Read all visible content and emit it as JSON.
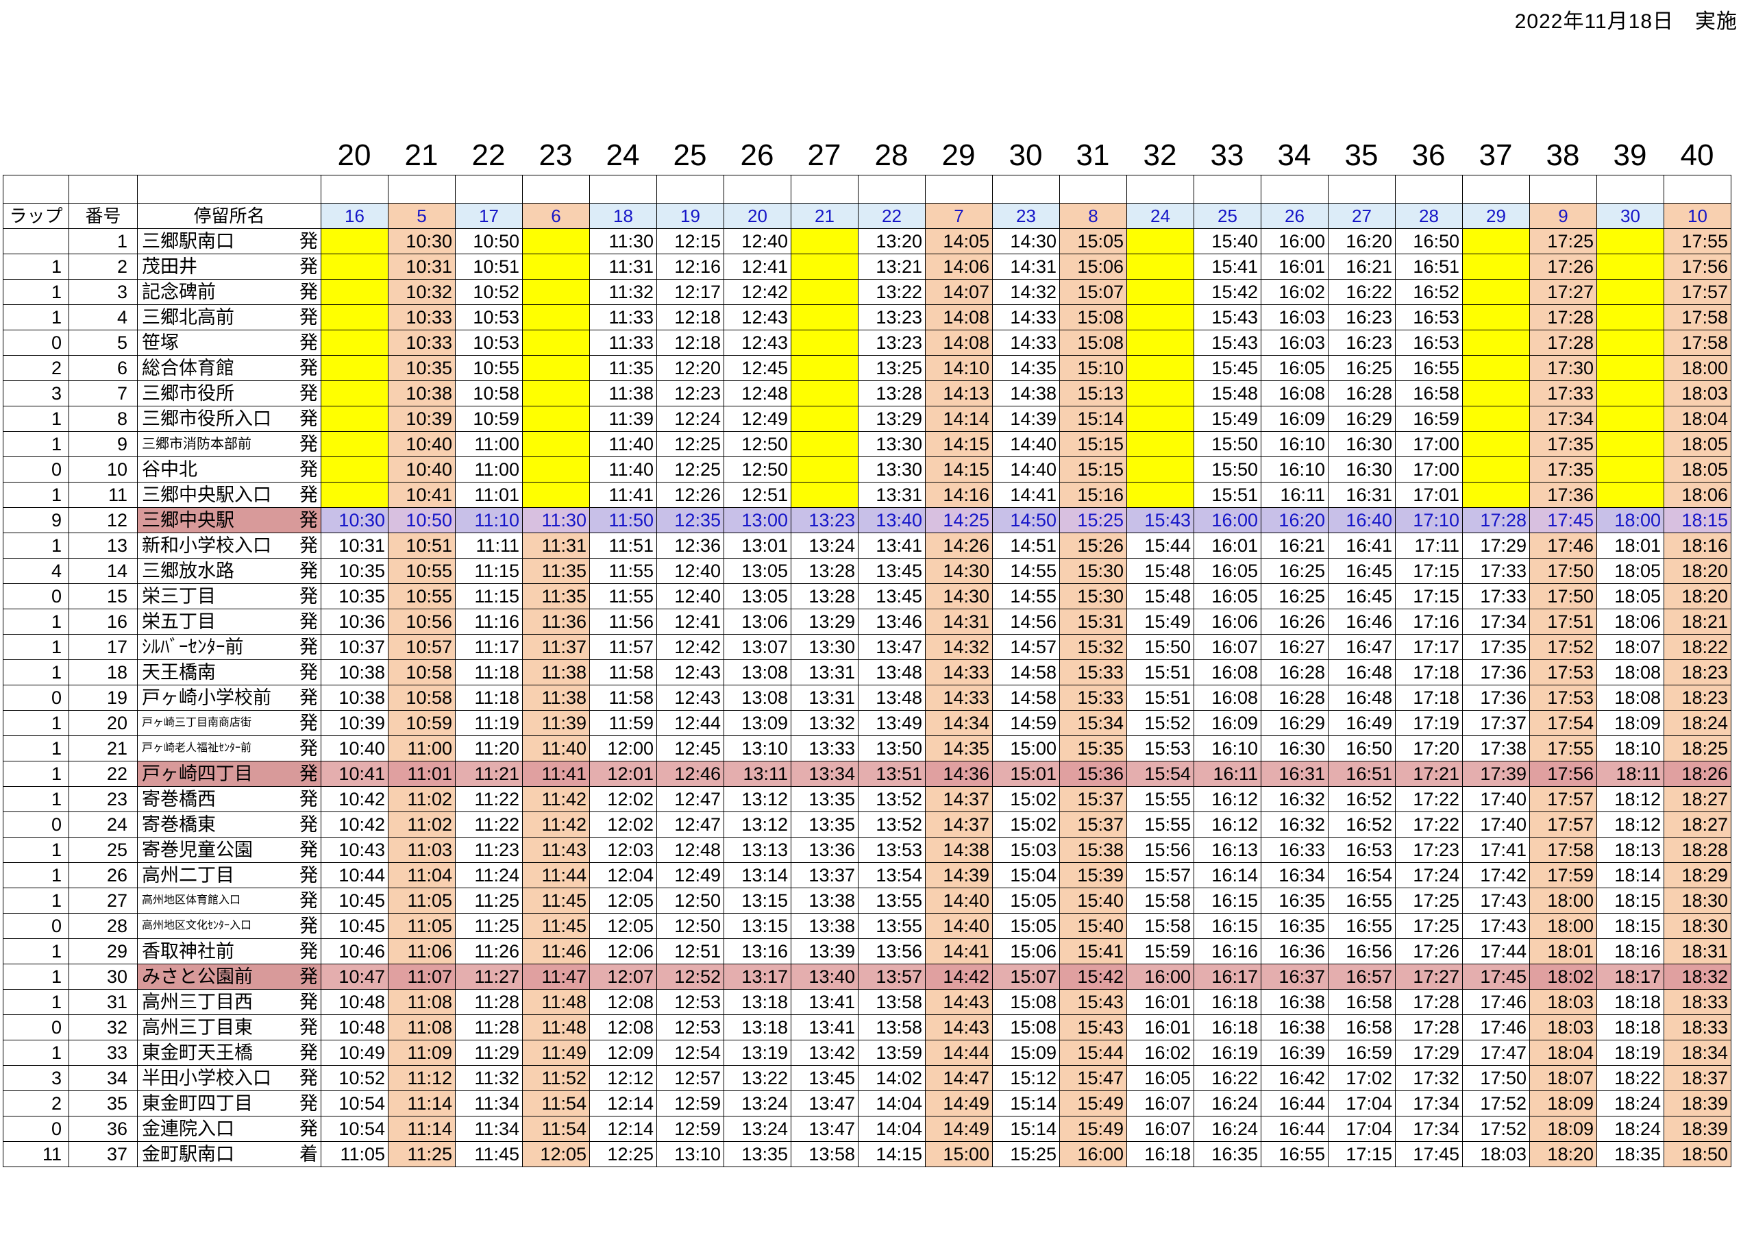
{
  "date_label": "2022年11月18日　実施",
  "header": {
    "lap": "ラップ",
    "number": "番号",
    "stop_name": "停留所名"
  },
  "colors": {
    "orange": "#f8d0b0",
    "yellow": "#ffff00",
    "blue": "#dcecf8",
    "highlight_stop": "#d89a9a",
    "trip_header_text": "#1515c8"
  },
  "trips": [
    {
      "col": "20",
      "no": "16",
      "color": "blue"
    },
    {
      "col": "21",
      "no": "5",
      "color": "orange"
    },
    {
      "col": "22",
      "no": "17",
      "color": "blue"
    },
    {
      "col": "23",
      "no": "6",
      "color": "orange"
    },
    {
      "col": "24",
      "no": "18",
      "color": "blue"
    },
    {
      "col": "25",
      "no": "19",
      "color": "blue"
    },
    {
      "col": "26",
      "no": "20",
      "color": "blue"
    },
    {
      "col": "27",
      "no": "21",
      "color": "blue"
    },
    {
      "col": "28",
      "no": "22",
      "color": "blue"
    },
    {
      "col": "29",
      "no": "7",
      "color": "orange"
    },
    {
      "col": "30",
      "no": "23",
      "color": "blue"
    },
    {
      "col": "31",
      "no": "8",
      "color": "orange"
    },
    {
      "col": "32",
      "no": "24",
      "color": "blue"
    },
    {
      "col": "33",
      "no": "25",
      "color": "blue"
    },
    {
      "col": "34",
      "no": "26",
      "color": "blue"
    },
    {
      "col": "35",
      "no": "27",
      "color": "blue"
    },
    {
      "col": "36",
      "no": "28",
      "color": "blue"
    },
    {
      "col": "37",
      "no": "29",
      "color": "blue"
    },
    {
      "col": "38",
      "no": "9",
      "color": "orange"
    },
    {
      "col": "39",
      "no": "30",
      "color": "blue"
    },
    {
      "col": "40",
      "no": "10",
      "color": "orange"
    }
  ],
  "rows": [
    {
      "lap": "",
      "num": "1",
      "stop": "三郷駅南口",
      "dep": "発",
      "times": [
        "",
        "10:30",
        "10:50",
        "",
        "11:30",
        "12:15",
        "12:40",
        "",
        "13:20",
        "14:05",
        "14:30",
        "15:05",
        "",
        "15:40",
        "16:00",
        "16:20",
        "16:50",
        "",
        "17:25",
        "",
        "17:55"
      ]
    },
    {
      "lap": "1",
      "num": "2",
      "stop": "茂田井",
      "dep": "発",
      "times": [
        "",
        "10:31",
        "10:51",
        "",
        "11:31",
        "12:16",
        "12:41",
        "",
        "13:21",
        "14:06",
        "14:31",
        "15:06",
        "",
        "15:41",
        "16:01",
        "16:21",
        "16:51",
        "",
        "17:26",
        "",
        "17:56"
      ]
    },
    {
      "lap": "1",
      "num": "3",
      "stop": "記念碑前",
      "dep": "発",
      "times": [
        "",
        "10:32",
        "10:52",
        "",
        "11:32",
        "12:17",
        "12:42",
        "",
        "13:22",
        "14:07",
        "14:32",
        "15:07",
        "",
        "15:42",
        "16:02",
        "16:22",
        "16:52",
        "",
        "17:27",
        "",
        "17:57"
      ]
    },
    {
      "lap": "1",
      "num": "4",
      "stop": "三郷北高前",
      "dep": "発",
      "times": [
        "",
        "10:33",
        "10:53",
        "",
        "11:33",
        "12:18",
        "12:43",
        "",
        "13:23",
        "14:08",
        "14:33",
        "15:08",
        "",
        "15:43",
        "16:03",
        "16:23",
        "16:53",
        "",
        "17:28",
        "",
        "17:58"
      ]
    },
    {
      "lap": "0",
      "num": "5",
      "stop": "笹塚",
      "dep": "発",
      "times": [
        "",
        "10:33",
        "10:53",
        "",
        "11:33",
        "12:18",
        "12:43",
        "",
        "13:23",
        "14:08",
        "14:33",
        "15:08",
        "",
        "15:43",
        "16:03",
        "16:23",
        "16:53",
        "",
        "17:28",
        "",
        "17:58"
      ]
    },
    {
      "lap": "2",
      "num": "6",
      "stop": "総合体育館",
      "dep": "発",
      "times": [
        "",
        "10:35",
        "10:55",
        "",
        "11:35",
        "12:20",
        "12:45",
        "",
        "13:25",
        "14:10",
        "14:35",
        "15:10",
        "",
        "15:45",
        "16:05",
        "16:25",
        "16:55",
        "",
        "17:30",
        "",
        "18:00"
      ]
    },
    {
      "lap": "3",
      "num": "7",
      "stop": "三郷市役所",
      "dep": "発",
      "times": [
        "",
        "10:38",
        "10:58",
        "",
        "11:38",
        "12:23",
        "12:48",
        "",
        "13:28",
        "14:13",
        "14:38",
        "15:13",
        "",
        "15:48",
        "16:08",
        "16:28",
        "16:58",
        "",
        "17:33",
        "",
        "18:03"
      ]
    },
    {
      "lap": "1",
      "num": "8",
      "stop": "三郷市役所入口",
      "dep": "発",
      "times": [
        "",
        "10:39",
        "10:59",
        "",
        "11:39",
        "12:24",
        "12:49",
        "",
        "13:29",
        "14:14",
        "14:39",
        "15:14",
        "",
        "15:49",
        "16:09",
        "16:29",
        "16:59",
        "",
        "17:34",
        "",
        "18:04"
      ]
    },
    {
      "lap": "1",
      "num": "9",
      "stop": "三郷市消防本部前",
      "dep": "発",
      "size": "small",
      "times": [
        "",
        "10:40",
        "11:00",
        "",
        "11:40",
        "12:25",
        "12:50",
        "",
        "13:30",
        "14:15",
        "14:40",
        "15:15",
        "",
        "15:50",
        "16:10",
        "16:30",
        "17:00",
        "",
        "17:35",
        "",
        "18:05"
      ]
    },
    {
      "lap": "0",
      "num": "10",
      "stop": "谷中北",
      "dep": "発",
      "times": [
        "",
        "10:40",
        "11:00",
        "",
        "11:40",
        "12:25",
        "12:50",
        "",
        "13:30",
        "14:15",
        "14:40",
        "15:15",
        "",
        "15:50",
        "16:10",
        "16:30",
        "17:00",
        "",
        "17:35",
        "",
        "18:05"
      ]
    },
    {
      "lap": "1",
      "num": "11",
      "stop": "三郷中央駅入口",
      "dep": "発",
      "times": [
        "",
        "10:41",
        "11:01",
        "",
        "11:41",
        "12:26",
        "12:51",
        "",
        "13:31",
        "14:16",
        "14:41",
        "15:16",
        "",
        "15:51",
        "16:11",
        "16:31",
        "17:01",
        "",
        "17:36",
        "",
        "18:06"
      ]
    },
    {
      "lap": "9",
      "num": "12",
      "stop": "三郷中央駅",
      "dep": "発",
      "hl": "purple",
      "times": [
        "10:30",
        "10:50",
        "11:10",
        "11:30",
        "11:50",
        "12:35",
        "13:00",
        "13:23",
        "13:40",
        "14:25",
        "14:50",
        "15:25",
        "15:43",
        "16:00",
        "16:20",
        "16:40",
        "17:10",
        "17:28",
        "17:45",
        "18:00",
        "18:15"
      ]
    },
    {
      "lap": "1",
      "num": "13",
      "stop": "新和小学校入口",
      "dep": "発",
      "times": [
        "10:31",
        "10:51",
        "11:11",
        "11:31",
        "11:51",
        "12:36",
        "13:01",
        "13:24",
        "13:41",
        "14:26",
        "14:51",
        "15:26",
        "15:44",
        "16:01",
        "16:21",
        "16:41",
        "17:11",
        "17:29",
        "17:46",
        "18:01",
        "18:16"
      ]
    },
    {
      "lap": "4",
      "num": "14",
      "stop": "三郷放水路",
      "dep": "発",
      "times": [
        "10:35",
        "10:55",
        "11:15",
        "11:35",
        "11:55",
        "12:40",
        "13:05",
        "13:28",
        "13:45",
        "14:30",
        "14:55",
        "15:30",
        "15:48",
        "16:05",
        "16:25",
        "16:45",
        "17:15",
        "17:33",
        "17:50",
        "18:05",
        "18:20"
      ]
    },
    {
      "lap": "0",
      "num": "15",
      "stop": "栄三丁目",
      "dep": "発",
      "times": [
        "10:35",
        "10:55",
        "11:15",
        "11:35",
        "11:55",
        "12:40",
        "13:05",
        "13:28",
        "13:45",
        "14:30",
        "14:55",
        "15:30",
        "15:48",
        "16:05",
        "16:25",
        "16:45",
        "17:15",
        "17:33",
        "17:50",
        "18:05",
        "18:20"
      ]
    },
    {
      "lap": "1",
      "num": "16",
      "stop": "栄五丁目",
      "dep": "発",
      "times": [
        "10:36",
        "10:56",
        "11:16",
        "11:36",
        "11:56",
        "12:41",
        "13:06",
        "13:29",
        "13:46",
        "14:31",
        "14:56",
        "15:31",
        "15:49",
        "16:06",
        "16:26",
        "16:46",
        "17:16",
        "17:34",
        "17:51",
        "18:06",
        "18:21"
      ]
    },
    {
      "lap": "1",
      "num": "17",
      "stop": "ｼﾙﾊﾞｰｾﾝﾀｰ前",
      "dep": "発",
      "times": [
        "10:37",
        "10:57",
        "11:17",
        "11:37",
        "11:57",
        "12:42",
        "13:07",
        "13:30",
        "13:47",
        "14:32",
        "14:57",
        "15:32",
        "15:50",
        "16:07",
        "16:27",
        "16:47",
        "17:17",
        "17:35",
        "17:52",
        "18:07",
        "18:22"
      ]
    },
    {
      "lap": "1",
      "num": "18",
      "stop": "天王橋南",
      "dep": "発",
      "times": [
        "10:38",
        "10:58",
        "11:18",
        "11:38",
        "11:58",
        "12:43",
        "13:08",
        "13:31",
        "13:48",
        "14:33",
        "14:58",
        "15:33",
        "15:51",
        "16:08",
        "16:28",
        "16:48",
        "17:18",
        "17:36",
        "17:53",
        "18:08",
        "18:23"
      ]
    },
    {
      "lap": "0",
      "num": "19",
      "stop": "戸ヶ崎小学校前",
      "dep": "発",
      "times": [
        "10:38",
        "10:58",
        "11:18",
        "11:38",
        "11:58",
        "12:43",
        "13:08",
        "13:31",
        "13:48",
        "14:33",
        "14:58",
        "15:33",
        "15:51",
        "16:08",
        "16:28",
        "16:48",
        "17:18",
        "17:36",
        "17:53",
        "18:08",
        "18:23"
      ]
    },
    {
      "lap": "1",
      "num": "20",
      "stop": "戸ヶ崎三丁目南商店街",
      "dep": "発",
      "size": "tiny",
      "times": [
        "10:39",
        "10:59",
        "11:19",
        "11:39",
        "11:59",
        "12:44",
        "13:09",
        "13:32",
        "13:49",
        "14:34",
        "14:59",
        "15:34",
        "15:52",
        "16:09",
        "16:29",
        "16:49",
        "17:19",
        "17:37",
        "17:54",
        "18:09",
        "18:24"
      ]
    },
    {
      "lap": "1",
      "num": "21",
      "stop": "戸ヶ崎老人福祉ｾﾝﾀｰ前",
      "dep": "発",
      "size": "tiny",
      "times": [
        "10:40",
        "11:00",
        "11:20",
        "11:40",
        "12:00",
        "12:45",
        "13:10",
        "13:33",
        "13:50",
        "14:35",
        "15:00",
        "15:35",
        "15:53",
        "16:10",
        "16:30",
        "16:50",
        "17:20",
        "17:38",
        "17:55",
        "18:10",
        "18:25"
      ]
    },
    {
      "lap": "1",
      "num": "22",
      "stop": "戸ヶ崎四丁目",
      "dep": "発",
      "hl": "pink",
      "times": [
        "10:41",
        "11:01",
        "11:21",
        "11:41",
        "12:01",
        "12:46",
        "13:11",
        "13:34",
        "13:51",
        "14:36",
        "15:01",
        "15:36",
        "15:54",
        "16:11",
        "16:31",
        "16:51",
        "17:21",
        "17:39",
        "17:56",
        "18:11",
        "18:26"
      ]
    },
    {
      "lap": "1",
      "num": "23",
      "stop": "寄巻橋西",
      "dep": "発",
      "times": [
        "10:42",
        "11:02",
        "11:22",
        "11:42",
        "12:02",
        "12:47",
        "13:12",
        "13:35",
        "13:52",
        "14:37",
        "15:02",
        "15:37",
        "15:55",
        "16:12",
        "16:32",
        "16:52",
        "17:22",
        "17:40",
        "17:57",
        "18:12",
        "18:27"
      ]
    },
    {
      "lap": "0",
      "num": "24",
      "stop": "寄巻橋東",
      "dep": "発",
      "times": [
        "10:42",
        "11:02",
        "11:22",
        "11:42",
        "12:02",
        "12:47",
        "13:12",
        "13:35",
        "13:52",
        "14:37",
        "15:02",
        "15:37",
        "15:55",
        "16:12",
        "16:32",
        "16:52",
        "17:22",
        "17:40",
        "17:57",
        "18:12",
        "18:27"
      ]
    },
    {
      "lap": "1",
      "num": "25",
      "stop": "寄巻児童公園",
      "dep": "発",
      "times": [
        "10:43",
        "11:03",
        "11:23",
        "11:43",
        "12:03",
        "12:48",
        "13:13",
        "13:36",
        "13:53",
        "14:38",
        "15:03",
        "15:38",
        "15:56",
        "16:13",
        "16:33",
        "16:53",
        "17:23",
        "17:41",
        "17:58",
        "18:13",
        "18:28"
      ]
    },
    {
      "lap": "1",
      "num": "26",
      "stop": "高州二丁目",
      "dep": "発",
      "times": [
        "10:44",
        "11:04",
        "11:24",
        "11:44",
        "12:04",
        "12:49",
        "13:14",
        "13:37",
        "13:54",
        "14:39",
        "15:04",
        "15:39",
        "15:57",
        "16:14",
        "16:34",
        "16:54",
        "17:24",
        "17:42",
        "17:59",
        "18:14",
        "18:29"
      ]
    },
    {
      "lap": "1",
      "num": "27",
      "stop": "高州地区体育館入口",
      "dep": "発",
      "size": "tiny",
      "times": [
        "10:45",
        "11:05",
        "11:25",
        "11:45",
        "12:05",
        "12:50",
        "13:15",
        "13:38",
        "13:55",
        "14:40",
        "15:05",
        "15:40",
        "15:58",
        "16:15",
        "16:35",
        "16:55",
        "17:25",
        "17:43",
        "18:00",
        "18:15",
        "18:30"
      ]
    },
    {
      "lap": "0",
      "num": "28",
      "stop": "高州地区文化ｾﾝﾀｰ入口",
      "dep": "発",
      "size": "tiny",
      "times": [
        "10:45",
        "11:05",
        "11:25",
        "11:45",
        "12:05",
        "12:50",
        "13:15",
        "13:38",
        "13:55",
        "14:40",
        "15:05",
        "15:40",
        "15:58",
        "16:15",
        "16:35",
        "16:55",
        "17:25",
        "17:43",
        "18:00",
        "18:15",
        "18:30"
      ]
    },
    {
      "lap": "1",
      "num": "29",
      "stop": "香取神社前",
      "dep": "発",
      "times": [
        "10:46",
        "11:06",
        "11:26",
        "11:46",
        "12:06",
        "12:51",
        "13:16",
        "13:39",
        "13:56",
        "14:41",
        "15:06",
        "15:41",
        "15:59",
        "16:16",
        "16:36",
        "16:56",
        "17:26",
        "17:44",
        "18:01",
        "18:16",
        "18:31"
      ]
    },
    {
      "lap": "1",
      "num": "30",
      "stop": "みさと公園前",
      "dep": "発",
      "hl": "pink",
      "times": [
        "10:47",
        "11:07",
        "11:27",
        "11:47",
        "12:07",
        "12:52",
        "13:17",
        "13:40",
        "13:57",
        "14:42",
        "15:07",
        "15:42",
        "16:00",
        "16:17",
        "16:37",
        "16:57",
        "17:27",
        "17:45",
        "18:02",
        "18:17",
        "18:32"
      ]
    },
    {
      "lap": "1",
      "num": "31",
      "stop": "高州三丁目西",
      "dep": "発",
      "times": [
        "10:48",
        "11:08",
        "11:28",
        "11:48",
        "12:08",
        "12:53",
        "13:18",
        "13:41",
        "13:58",
        "14:43",
        "15:08",
        "15:43",
        "16:01",
        "16:18",
        "16:38",
        "16:58",
        "17:28",
        "17:46",
        "18:03",
        "18:18",
        "18:33"
      ]
    },
    {
      "lap": "0",
      "num": "32",
      "stop": "高州三丁目東",
      "dep": "発",
      "times": [
        "10:48",
        "11:08",
        "11:28",
        "11:48",
        "12:08",
        "12:53",
        "13:18",
        "13:41",
        "13:58",
        "14:43",
        "15:08",
        "15:43",
        "16:01",
        "16:18",
        "16:38",
        "16:58",
        "17:28",
        "17:46",
        "18:03",
        "18:18",
        "18:33"
      ]
    },
    {
      "lap": "1",
      "num": "33",
      "stop": "東金町天王橋",
      "dep": "発",
      "times": [
        "10:49",
        "11:09",
        "11:29",
        "11:49",
        "12:09",
        "12:54",
        "13:19",
        "13:42",
        "13:59",
        "14:44",
        "15:09",
        "15:44",
        "16:02",
        "16:19",
        "16:39",
        "16:59",
        "17:29",
        "17:47",
        "18:04",
        "18:19",
        "18:34"
      ]
    },
    {
      "lap": "3",
      "num": "34",
      "stop": "半田小学校入口",
      "dep": "発",
      "times": [
        "10:52",
        "11:12",
        "11:32",
        "11:52",
        "12:12",
        "12:57",
        "13:22",
        "13:45",
        "14:02",
        "14:47",
        "15:12",
        "15:47",
        "16:05",
        "16:22",
        "16:42",
        "17:02",
        "17:32",
        "17:50",
        "18:07",
        "18:22",
        "18:37"
      ]
    },
    {
      "lap": "2",
      "num": "35",
      "stop": "東金町四丁目",
      "dep": "発",
      "times": [
        "10:54",
        "11:14",
        "11:34",
        "11:54",
        "12:14",
        "12:59",
        "13:24",
        "13:47",
        "14:04",
        "14:49",
        "15:14",
        "15:49",
        "16:07",
        "16:24",
        "16:44",
        "17:04",
        "17:34",
        "17:52",
        "18:09",
        "18:24",
        "18:39"
      ]
    },
    {
      "lap": "0",
      "num": "36",
      "stop": "金連院入口",
      "dep": "発",
      "times": [
        "10:54",
        "11:14",
        "11:34",
        "11:54",
        "12:14",
        "12:59",
        "13:24",
        "13:47",
        "14:04",
        "14:49",
        "15:14",
        "15:49",
        "16:07",
        "16:24",
        "16:44",
        "17:04",
        "17:34",
        "17:52",
        "18:09",
        "18:24",
        "18:39"
      ]
    },
    {
      "lap": "11",
      "num": "37",
      "stop": "金町駅南口",
      "dep": "着",
      "times": [
        "11:05",
        "11:25",
        "11:45",
        "12:05",
        "12:25",
        "13:10",
        "13:35",
        "13:58",
        "14:15",
        "15:00",
        "15:25",
        "16:00",
        "16:18",
        "16:35",
        "16:55",
        "17:15",
        "17:45",
        "18:03",
        "18:20",
        "18:35",
        "18:50"
      ]
    }
  ]
}
